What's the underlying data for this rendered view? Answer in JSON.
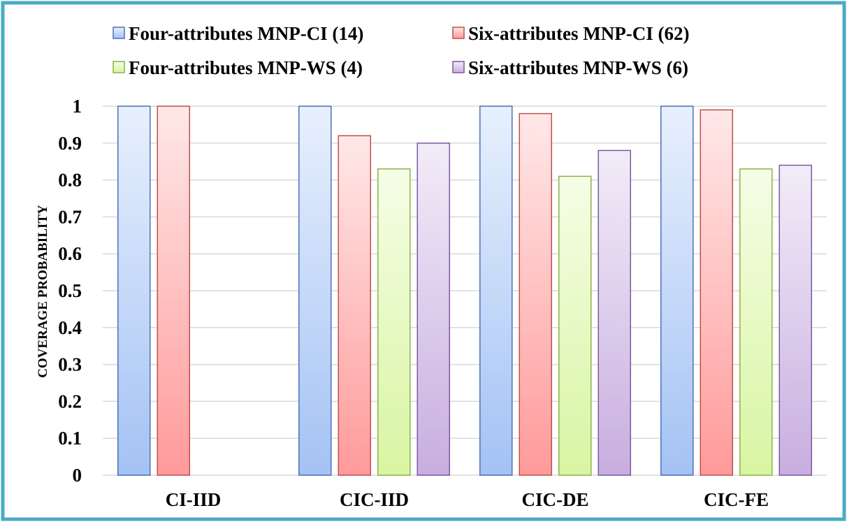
{
  "chart_data": {
    "type": "bar",
    "ylabel": "COVERAGE PROBABILITY",
    "xlabel": "",
    "ylim": [
      0,
      1
    ],
    "yticks": [
      0,
      0.1,
      0.2,
      0.3,
      0.4,
      0.5,
      0.6,
      0.7,
      0.8,
      0.9,
      1
    ],
    "ytick_labels": [
      "0",
      "0.1",
      "0.2",
      "0.3",
      "0.4",
      "0.5",
      "0.6",
      "0.7",
      "0.8",
      "0.9",
      "1"
    ],
    "grid": true,
    "legend_position": "top",
    "categories": [
      "CI-IID",
      "CIC-IID",
      "CIC-DE",
      "CIC-FE"
    ],
    "series": [
      {
        "name": "Four-attributes MNP-CI (14)",
        "values": [
          1.0,
          1.0,
          1.0,
          1.0
        ],
        "color": "#a4c2f4",
        "color_light": "#e8f0fd",
        "stroke": "#4a72b8"
      },
      {
        "name": "Six-attributes MNP-CI (62)",
        "values": [
          1.0,
          0.92,
          0.98,
          0.99
        ],
        "color": "#ff9a9a",
        "color_light": "#ffe8e8",
        "stroke": "#c0504d"
      },
      {
        "name": "Four-attributes MNP-WS (4)",
        "values": [
          null,
          0.83,
          0.81,
          0.83
        ],
        "color": "#d8f5a2",
        "color_light": "#f5fde6",
        "stroke": "#8db34a"
      },
      {
        "name": "Six-attributes MNP-WS (6)",
        "values": [
          null,
          0.9,
          0.88,
          0.84
        ],
        "color": "#c8aee0",
        "color_light": "#f2ecf8",
        "stroke": "#7a5a9e"
      }
    ],
    "frame_color": "#4aacc5",
    "grid_color": "#d9d9d9"
  }
}
